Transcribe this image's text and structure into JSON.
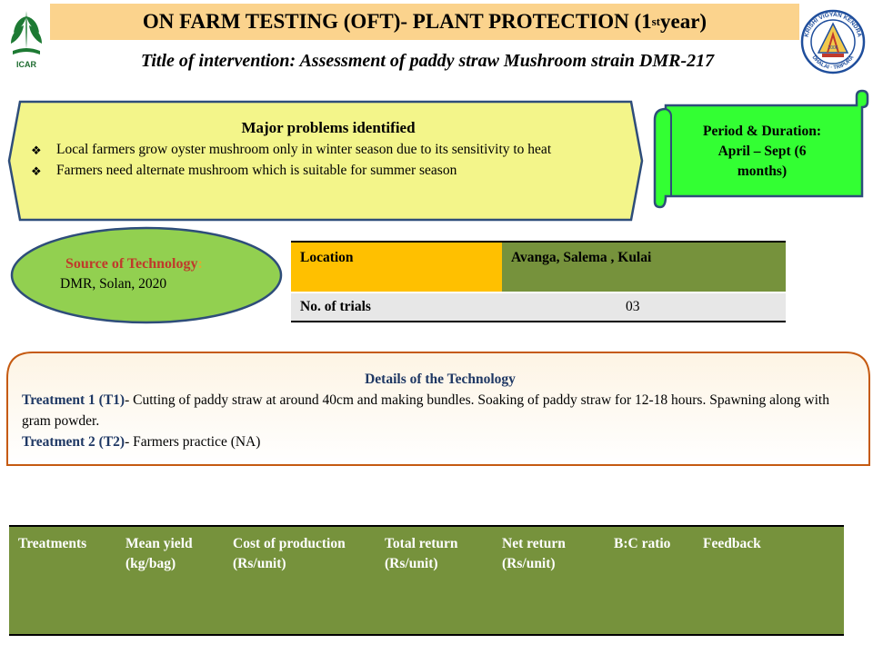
{
  "header": {
    "title_main": "ON FARM TESTING (OFT)- PLANT PROTECTION   (1",
    "title_sup": "st",
    "title_end": "  year)",
    "subtitle": "Title of intervention: Assessment of paddy straw Mushroom strain DMR-217"
  },
  "logos": {
    "icar_text": "ICAR",
    "kvk_name": "KRISHI VIGYAN KENDRA",
    "kvk_place": "DHALAI · TRIPURA",
    "kvk_year": "2006"
  },
  "problems": {
    "heading": "Major  problems  identified",
    "items": [
      "Local farmers grow oyster mushroom only in winter   season due to its sensitivity  to heat",
      "Farmers need alternate  mushroom  which is suitable  for summer season"
    ]
  },
  "period": {
    "label": "Period & Duration",
    "colon": ":",
    "value_line1": "April – Sept    (6",
    "value_line2": "months)"
  },
  "source": {
    "label": "Source of Technology",
    "colon": ":",
    "value": "DMR, Solan, 2020"
  },
  "location_table": {
    "location_label": "Location",
    "location_value": "Avanga, Salema , Kulai",
    "trials_label": "No. of trials",
    "trials_value": "03"
  },
  "details": {
    "heading": "Details of the Technology",
    "t1_label": "Treatment  1 (T1)",
    "t1_text": "- Cutting of paddy straw at around 40cm and making bundles. Soaking of paddy straw for 12-18 hours. Spawning along with gram powder.",
    "t2_label": "Treatment 2 (T2)",
    "t2_text": "- Farmers practice (NA)"
  },
  "results_table": {
    "headers": [
      "Treatments",
      "Mean yield (kg/bag)",
      "Cost of production (Rs/unit)",
      "Total return (Rs/unit)",
      "Net return (Rs/unit)",
      "B:C ratio",
      "Feedback"
    ]
  },
  "colors": {
    "title_bg": "#fbd38d",
    "problems_bg": "#f3f58a",
    "period_bg": "#33ff33",
    "source_bg": "#92d050",
    "location_value_bg": "#76923c",
    "location_label_bg": "#ffc000",
    "table_header_bg": "#76923c"
  }
}
